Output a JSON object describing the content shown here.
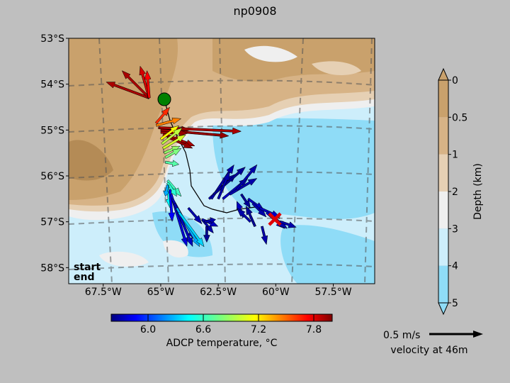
{
  "figure": {
    "title": "np0908",
    "background": "#bfbfbf"
  },
  "chart_data": {
    "type": "map-quiver",
    "title": "np0908",
    "lon_ticks": [
      "67.5°W",
      "65°W",
      "62.5°W",
      "60°W",
      "57.5°W"
    ],
    "lat_ticks": [
      "53°S",
      "54°S",
      "55°S",
      "56°S",
      "57°S",
      "58°S"
    ],
    "lon_range": [
      -69.0,
      -55.7
    ],
    "lat_range": [
      -53.0,
      -58.35
    ],
    "legend": {
      "start_label": "start",
      "end_label": "end",
      "start_color": "#008000",
      "end_color": "#e00000"
    },
    "start_marker": {
      "lon": -65.5,
      "lat": -54.3
    },
    "end_marker": {
      "lon": -60.9,
      "lat": -56.95
    },
    "depth_colorbar": {
      "label": "Depth (km)",
      "ticks": [
        "0",
        "0.5",
        "1",
        "2",
        "3",
        "4",
        "5"
      ],
      "colors": [
        "#c9a16c",
        "#d7b386",
        "#e6d0b4",
        "#efefef",
        "#cdeefb",
        "#8fdcf7"
      ]
    },
    "temperature_colorbar": {
      "label": "ADCP temperature, °C",
      "ticks": [
        "6.0",
        "6.6",
        "7.2",
        "7.8"
      ],
      "range": [
        5.6,
        8.0
      ]
    },
    "scale_arrow": {
      "speed_label": "0.5 m/s",
      "depth_label": "velocity at 46m"
    },
    "vectors": [
      {
        "lon": -65.5,
        "lat": -54.3,
        "u": -0.95,
        "v": 0.35,
        "temp": 7.9
      },
      {
        "lon": -65.5,
        "lat": -54.3,
        "u": -0.6,
        "v": 0.6,
        "temp": 7.9
      },
      {
        "lon": -65.5,
        "lat": -54.3,
        "u": -0.2,
        "v": 0.7,
        "temp": 7.8
      },
      {
        "lon": -65.5,
        "lat": -54.3,
        "u": -0.05,
        "v": 0.6,
        "temp": 7.7
      },
      {
        "lon": -65.2,
        "lat": -54.85,
        "u": 0.3,
        "v": 0.35,
        "temp": 7.6
      },
      {
        "lon": -65.2,
        "lat": -54.9,
        "u": 0.55,
        "v": 0.15,
        "temp": 7.4
      },
      {
        "lon": -65.1,
        "lat": -54.95,
        "u": 0.7,
        "v": -0.05,
        "temp": 7.9
      },
      {
        "lon": -65.05,
        "lat": -54.95,
        "u": 1.8,
        "v": -0.08,
        "temp": 7.9
      },
      {
        "lon": -65.0,
        "lat": -55.0,
        "u": 1.5,
        "v": -0.13,
        "temp": 7.95
      },
      {
        "lon": -65.0,
        "lat": -55.05,
        "u": 0.6,
        "v": -0.02,
        "temp": 7.95
      },
      {
        "lon": -64.9,
        "lat": -55.1,
        "u": 0.45,
        "v": -0.15,
        "temp": 7.8
      },
      {
        "lon": -64.8,
        "lat": -55.1,
        "u": 0.65,
        "v": -0.25,
        "temp": 7.9
      },
      {
        "lon": -64.7,
        "lat": -55.15,
        "u": 0.55,
        "v": -0.25,
        "temp": 7.95
      },
      {
        "lon": -65.0,
        "lat": -55.2,
        "u": 0.4,
        "v": 0.3,
        "temp": 7.1
      },
      {
        "lon": -64.95,
        "lat": -55.3,
        "u": 0.45,
        "v": 0.35,
        "temp": 6.95
      },
      {
        "lon": -64.9,
        "lat": -55.4,
        "u": 0.5,
        "v": 0.3,
        "temp": 7.0
      },
      {
        "lon": -64.85,
        "lat": -55.5,
        "u": 0.35,
        "v": 0.15,
        "temp": 6.85
      },
      {
        "lon": -64.8,
        "lat": -55.6,
        "u": 0.35,
        "v": 0.2,
        "temp": 6.8
      },
      {
        "lon": -64.8,
        "lat": -55.7,
        "u": 0.3,
        "v": -0.05,
        "temp": 6.7
      },
      {
        "lon": -64.7,
        "lat": -56.1,
        "u": 0.3,
        "v": -0.35,
        "temp": 6.65
      },
      {
        "lon": -64.7,
        "lat": -56.15,
        "u": 0.2,
        "v": -0.3,
        "temp": 6.6
      },
      {
        "lon": -64.7,
        "lat": -56.2,
        "u": 0.05,
        "v": -0.5,
        "temp": 6.5
      },
      {
        "lon": -64.7,
        "lat": -56.2,
        "u": -0.05,
        "v": -0.25,
        "temp": 6.3
      },
      {
        "lon": -64.6,
        "lat": -56.3,
        "u": 0.05,
        "v": -0.7,
        "temp": 5.9
      },
      {
        "lon": -64.55,
        "lat": -56.4,
        "u": 0.35,
        "v": -1.15,
        "temp": 5.8
      },
      {
        "lon": -64.5,
        "lat": -56.5,
        "u": 0.5,
        "v": -0.9,
        "temp": 5.75
      },
      {
        "lon": -64.4,
        "lat": -56.6,
        "u": 0.4,
        "v": -0.95,
        "temp": 5.75
      },
      {
        "lon": -64.3,
        "lat": -56.7,
        "u": 0.5,
        "v": -0.85,
        "temp": 6.3
      },
      {
        "lon": -64.2,
        "lat": -56.8,
        "u": 0.55,
        "v": -0.75,
        "temp": 6.4
      },
      {
        "lon": -63.8,
        "lat": -56.7,
        "u": 0.3,
        "v": -0.35,
        "temp": 5.7
      },
      {
        "lon": -63.2,
        "lat": -56.95,
        "u": 0.25,
        "v": -0.3,
        "temp": 5.7
      },
      {
        "lon": -63.2,
        "lat": -56.95,
        "u": 0.35,
        "v": -0.15,
        "temp": 5.75
      },
      {
        "lon": -63.1,
        "lat": -57.0,
        "u": 0.25,
        "v": 0.05,
        "temp": 5.7
      },
      {
        "lon": -63.0,
        "lat": -57.1,
        "u": 0.0,
        "v": -0.35,
        "temp": 5.65
      },
      {
        "lon": -62.9,
        "lat": -56.5,
        "u": 0.6,
        "v": 0.55,
        "temp": 5.7
      },
      {
        "lon": -62.8,
        "lat": -56.5,
        "u": 0.5,
        "v": 0.75,
        "temp": 5.7
      },
      {
        "lon": -62.7,
        "lat": -56.4,
        "u": 0.7,
        "v": 0.6,
        "temp": 5.65
      },
      {
        "lon": -62.5,
        "lat": -56.5,
        "u": 0.25,
        "v": 0.6,
        "temp": 5.7
      },
      {
        "lon": -62.3,
        "lat": -56.5,
        "u": 0.55,
        "v": 0.45,
        "temp": 5.75
      },
      {
        "lon": -62.0,
        "lat": -56.4,
        "u": 0.6,
        "v": 0.35,
        "temp": 5.7
      },
      {
        "lon": -61.7,
        "lat": -56.3,
        "u": 0.45,
        "v": 0.55,
        "temp": 5.7
      },
      {
        "lon": -61.5,
        "lat": -56.4,
        "u": 0.2,
        "v": -0.3,
        "temp": 5.65
      },
      {
        "lon": -61.2,
        "lat": -56.5,
        "u": 0.35,
        "v": -0.25,
        "temp": 5.75
      },
      {
        "lon": -61.0,
        "lat": -56.6,
        "u": 0.3,
        "v": -0.3,
        "temp": 5.7
      },
      {
        "lon": -60.7,
        "lat": -56.7,
        "u": 0.45,
        "v": -0.2,
        "temp": 5.75
      },
      {
        "lon": -60.4,
        "lat": -56.8,
        "u": 0.4,
        "v": -0.35,
        "temp": 5.75
      },
      {
        "lon": -60.1,
        "lat": -56.9,
        "u": 0.3,
        "v": -0.25,
        "temp": 5.7
      },
      {
        "lon": -59.8,
        "lat": -57.0,
        "u": 0.35,
        "v": -0.12,
        "temp": 5.7
      },
      {
        "lon": -61.4,
        "lat": -56.9,
        "u": -0.15,
        "v": 0.35,
        "temp": 5.75
      },
      {
        "lon": -61.1,
        "lat": -57.0,
        "u": -0.3,
        "v": 0.3,
        "temp": 5.7
      },
      {
        "lon": -60.9,
        "lat": -57.1,
        "u": -0.2,
        "v": 0.45,
        "temp": 5.65
      },
      {
        "lon": -60.6,
        "lat": -57.1,
        "u": 0.1,
        "v": -0.4,
        "temp": 5.7
      }
    ]
  }
}
